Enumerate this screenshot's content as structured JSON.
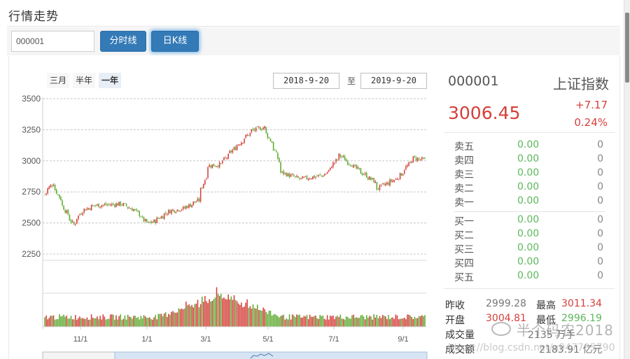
{
  "page": {
    "title": "行情走势"
  },
  "toolbar": {
    "code_value": "000001",
    "btn_fenshi": "分时线",
    "btn_rik": "日K线"
  },
  "range": {
    "buttons": [
      "三月",
      "半年",
      "一年"
    ],
    "active": "一年",
    "start_date": "2018-9-20",
    "separator": "至",
    "end_date": "2019-9-20"
  },
  "quote": {
    "code": "000001",
    "name": "上证指数",
    "price": "3006.45",
    "change": "+7.17",
    "change_pct": "0.24%"
  },
  "order_book": {
    "sell": [
      {
        "label": "卖五",
        "price": "0.00",
        "volume": "0"
      },
      {
        "label": "卖四",
        "price": "0.00",
        "volume": "0"
      },
      {
        "label": "卖三",
        "price": "0.00",
        "volume": "0"
      },
      {
        "label": "卖二",
        "price": "0.00",
        "volume": "0"
      },
      {
        "label": "卖一",
        "price": "0.00",
        "volume": "0"
      }
    ],
    "buy": [
      {
        "label": "买一",
        "price": "0.00",
        "volume": "0"
      },
      {
        "label": "买二",
        "price": "0.00",
        "volume": "0"
      },
      {
        "label": "买三",
        "price": "0.00",
        "volume": "0"
      },
      {
        "label": "买四",
        "price": "0.00",
        "volume": "0"
      },
      {
        "label": "买五",
        "price": "0.00",
        "volume": "0"
      }
    ]
  },
  "stats": {
    "prev_close_label": "昨收",
    "prev_close": "2999.28",
    "high_label": "最高",
    "high": "3011.34",
    "open_label": "开盘",
    "open": "3004.81",
    "low_label": "最低",
    "low": "2996.19",
    "volume_label": "成交量",
    "volume": "2135 万手",
    "amount_label": "成交额",
    "amount": "2183.91 亿元"
  },
  "watermark": {
    "text": "半个码农2018",
    "url": "https://blog.csdn.net/a947795790"
  },
  "colors": {
    "up": "#d43f3a",
    "down": "#5fa930",
    "accent": "#337ab7",
    "grid": "#c8c8c8"
  },
  "chart_data": {
    "type": "candlestick",
    "title": "",
    "y_ticks": [
      2250,
      2500,
      2750,
      3000,
      3250,
      3500
    ],
    "ylim": [
      2250,
      3500
    ],
    "x_ticks": [
      "11/1",
      "1/1",
      "3/1",
      "5/1",
      "7/1",
      "9/1"
    ],
    "x_range": [
      "2018-9-20",
      "2019-9-20"
    ],
    "price_path": [
      {
        "date": "2018-09-20",
        "close": 2730
      },
      {
        "date": "2018-09-28",
        "close": 2821
      },
      {
        "date": "2018-10-11",
        "close": 2583
      },
      {
        "date": "2018-10-18",
        "close": 2486
      },
      {
        "date": "2018-10-26",
        "close": 2598
      },
      {
        "date": "2018-11-07",
        "close": 2641
      },
      {
        "date": "2018-11-20",
        "close": 2646
      },
      {
        "date": "2018-12-03",
        "close": 2654
      },
      {
        "date": "2018-12-17",
        "close": 2597
      },
      {
        "date": "2018-12-28",
        "close": 2494
      },
      {
        "date": "2019-01-04",
        "close": 2515
      },
      {
        "date": "2019-01-18",
        "close": 2596
      },
      {
        "date": "2019-02-01",
        "close": 2618
      },
      {
        "date": "2019-02-15",
        "close": 2682
      },
      {
        "date": "2019-02-25",
        "close": 2961
      },
      {
        "date": "2019-03-08",
        "close": 2970
      },
      {
        "date": "2019-03-22",
        "close": 3104
      },
      {
        "date": "2019-04-08",
        "close": 3244
      },
      {
        "date": "2019-04-19",
        "close": 3270
      },
      {
        "date": "2019-04-30",
        "close": 3078
      },
      {
        "date": "2019-05-06",
        "close": 2906
      },
      {
        "date": "2019-05-24",
        "close": 2852
      },
      {
        "date": "2019-06-17",
        "close": 2887
      },
      {
        "date": "2019-07-01",
        "close": 3044
      },
      {
        "date": "2019-07-19",
        "close": 2924
      },
      {
        "date": "2019-08-05",
        "close": 2821
      },
      {
        "date": "2019-08-06",
        "close": 2777
      },
      {
        "date": "2019-08-26",
        "close": 2863
      },
      {
        "date": "2019-09-10",
        "close": 3021
      },
      {
        "date": "2019-09-20",
        "close": 3006
      }
    ],
    "volume_note": "volume bars; peak around early March 2019 (~2.6x baseline), one gridline shown",
    "grid": true,
    "legend": null
  }
}
